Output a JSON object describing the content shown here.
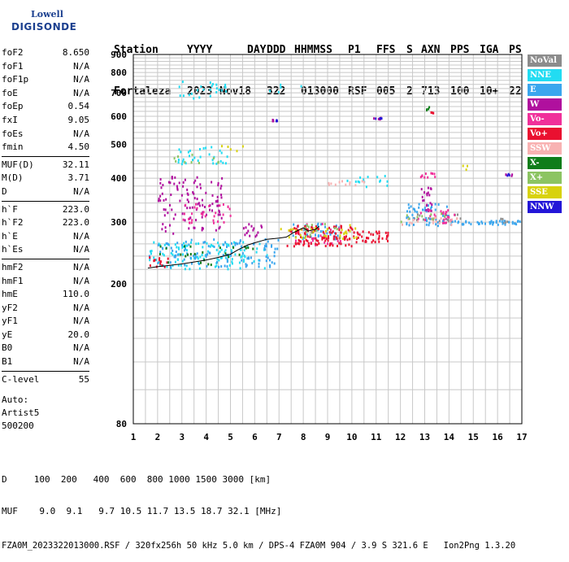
{
  "logo": {
    "line1": "Lowell",
    "line2": "DIGISONDE"
  },
  "header": {
    "labels": [
      "Station",
      "YYYY",
      "DAY",
      "DDD",
      "HHMMSS",
      "P1",
      "FFS",
      "S",
      "AXN",
      "PPS",
      "IGA",
      "PS"
    ],
    "values": [
      "Fortaleza",
      "2023",
      "Nov18",
      "322",
      "013000",
      "RSF",
      "005",
      "2",
      "713",
      "100",
      "10+",
      "22"
    ]
  },
  "params": [
    {
      "k": "foF2",
      "v": "8.650"
    },
    {
      "k": "foF1",
      "v": "N/A"
    },
    {
      "k": "foF1p",
      "v": "N/A"
    },
    {
      "k": "foE",
      "v": "N/A"
    },
    {
      "k": "foEp",
      "v": "0.54"
    },
    {
      "k": "fxI",
      "v": "9.05"
    },
    {
      "k": "foEs",
      "v": "N/A"
    },
    {
      "k": "fmin",
      "v": "4.50"
    },
    {
      "sep": true
    },
    {
      "k": "MUF(D)",
      "v": "32.11"
    },
    {
      "k": "M(D)",
      "v": "3.71"
    },
    {
      "k": "D",
      "v": "N/A"
    },
    {
      "sep": true
    },
    {
      "k": "h`F",
      "v": "223.0"
    },
    {
      "k": "h`F2",
      "v": "223.0"
    },
    {
      "k": "h`E",
      "v": "N/A"
    },
    {
      "k": "h`Es",
      "v": "N/A"
    },
    {
      "sep": true
    },
    {
      "k": "hmF2",
      "v": "N/A"
    },
    {
      "k": "hmF1",
      "v": "N/A"
    },
    {
      "k": "hmE",
      "v": "110.0"
    },
    {
      "k": "yF2",
      "v": "N/A"
    },
    {
      "k": "yF1",
      "v": "N/A"
    },
    {
      "k": "yE",
      "v": "20.0"
    },
    {
      "k": "B0",
      "v": "N/A"
    },
    {
      "k": "B1",
      "v": "N/A"
    },
    {
      "sep": true
    },
    {
      "k": "C-level",
      "v": "55"
    }
  ],
  "auto": {
    "line1": "Auto:",
    "line2": "Artist5",
    "line3": "500200"
  },
  "footer": {
    "line1": "D     100  200   400  600  800 1000 1500 3000 [km]",
    "line2": "MUF    9.0  9.1   9.7 10.5 11.7 13.5 18.7 32.1 [MHz]",
    "line3": "FZA0M_2023322013000.RSF / 320fx256h 50 kHz 5.0 km / DPS-4 FZA0M 904 / 3.9 S 321.6 E   Ion2Png 1.3.20"
  },
  "legend": [
    {
      "label": "NoVal",
      "color": "#8c8c8c"
    },
    {
      "label": "NNE",
      "color": "#22dcf2"
    },
    {
      "label": "E",
      "color": "#3aa6ee"
    },
    {
      "label": "W",
      "color": "#b0109e"
    },
    {
      "label": "Vo-",
      "color": "#f0309a"
    },
    {
      "label": "Vo+",
      "color": "#ea1030"
    },
    {
      "label": "SSW",
      "color": "#f8b2b2"
    },
    {
      "label": "X-",
      "color": "#0f7d1a"
    },
    {
      "label": "X+",
      "color": "#8cc462"
    },
    {
      "label": "SSE",
      "color": "#d8d20e"
    },
    {
      "label": "NNW",
      "color": "#2316d8"
    }
  ],
  "chart_data": {
    "type": "scatter",
    "xlabel": "",
    "ylabel": "",
    "xlim": [
      1,
      17
    ],
    "ylim": [
      80,
      900
    ],
    "y_scale": "log",
    "x_ticks": [
      1,
      2,
      3,
      4,
      5,
      6,
      7,
      8,
      9,
      10,
      11,
      12,
      13,
      14,
      15,
      16,
      17
    ],
    "y_ticks": [
      80,
      200,
      300,
      400,
      500,
      600,
      700,
      800,
      900
    ],
    "grid": true,
    "legend_position": "right",
    "trace_line": {
      "color": "#000000",
      "points": [
        [
          1.6,
          222
        ],
        [
          2,
          224
        ],
        [
          2.5,
          226
        ],
        [
          3,
          228
        ],
        [
          3.5,
          231
        ],
        [
          4,
          234
        ],
        [
          4.5,
          238
        ],
        [
          5,
          243
        ],
        [
          5.3,
          250
        ],
        [
          5.7,
          258
        ],
        [
          6,
          262
        ],
        [
          6.5,
          268
        ],
        [
          7,
          270
        ],
        [
          7.3,
          272
        ],
        [
          7.6,
          280
        ],
        [
          8,
          289
        ],
        [
          8.2,
          283
        ],
        [
          8.5,
          286
        ],
        [
          8.65,
          292
        ]
      ]
    },
    "clusters": [
      {
        "name": "NoVal",
        "color": "#8c8c8c",
        "regions": [
          [
            12.3,
            14.5,
            300,
            320,
            20
          ],
          [
            15.8,
            16.5,
            300,
            310,
            6
          ]
        ]
      },
      {
        "name": "NNE",
        "color": "#22dcf2",
        "regions": [
          [
            1.6,
            6.5,
            222,
            265,
            120
          ],
          [
            2.8,
            4.8,
            680,
            760,
            25
          ],
          [
            2.8,
            5,
            440,
            495,
            30
          ],
          [
            6.5,
            8,
            705,
            745,
            5
          ],
          [
            9.5,
            11.5,
            380,
            410,
            15
          ]
        ]
      },
      {
        "name": "E",
        "color": "#3aa6ee",
        "regions": [
          [
            1.6,
            7,
            225,
            270,
            110
          ],
          [
            7.5,
            9.5,
            270,
            300,
            40
          ],
          [
            12.2,
            14,
            295,
            345,
            50
          ],
          [
            14,
            16.9,
            297,
            305,
            45
          ]
        ]
      },
      {
        "name": "W",
        "color": "#b0109e",
        "regions": [
          [
            2,
            4.7,
            280,
            410,
            110
          ],
          [
            5.5,
            6.3,
            275,
            300,
            15
          ],
          [
            12.8,
            13.3,
            325,
            380,
            20
          ],
          [
            10.8,
            11.2,
            592,
            600,
            6
          ],
          [
            6.7,
            6.9,
            586,
            592,
            4
          ],
          [
            16.3,
            16.6,
            408,
            414,
            4
          ]
        ]
      },
      {
        "name": "Vo-",
        "color": "#f0309a",
        "regions": [
          [
            3,
            5,
            300,
            340,
            30
          ],
          [
            7.5,
            9.5,
            260,
            300,
            30
          ],
          [
            12.6,
            14.2,
            300,
            330,
            25
          ],
          [
            12.8,
            13.4,
            400,
            420,
            10
          ]
        ]
      },
      {
        "name": "Vo+",
        "color": "#ea1030",
        "regions": [
          [
            7.3,
            10,
            258,
            295,
            110
          ],
          [
            10,
            11.5,
            265,
            285,
            40
          ],
          [
            1.6,
            2.5,
            225,
            240,
            15
          ],
          [
            13.2,
            13.6,
            616,
            624,
            3
          ]
        ]
      },
      {
        "name": "SSW",
        "color": "#f8b2b2",
        "regions": [
          [
            9,
            10.5,
            382,
            396,
            12
          ],
          [
            12,
            14.5,
            296,
            312,
            20
          ]
        ]
      },
      {
        "name": "X-",
        "color": "#0f7d1a",
        "regions": [
          [
            2,
            6,
            228,
            262,
            25
          ],
          [
            12.9,
            13.2,
            620,
            650,
            4
          ]
        ]
      },
      {
        "name": "X+",
        "color": "#8cc462",
        "regions": [
          [
            2.5,
            4.5,
            440,
            470,
            10
          ],
          [
            8,
            9.5,
            270,
            300,
            15
          ],
          [
            12,
            14,
            300,
            320,
            10
          ]
        ]
      },
      {
        "name": "SSE",
        "color": "#d8d20e",
        "regions": [
          [
            7,
            10.5,
            270,
            300,
            30
          ],
          [
            4.5,
            5.5,
            480,
            500,
            5
          ],
          [
            14.5,
            15,
            420,
            440,
            3
          ]
        ]
      },
      {
        "name": "NNW",
        "color": "#2316d8",
        "regions": [
          [
            6.7,
            6.9,
            586,
            592,
            3
          ],
          [
            10.9,
            11.2,
            590,
            598,
            4
          ],
          [
            16.2,
            16.6,
            405,
            414,
            3
          ]
        ]
      }
    ]
  }
}
